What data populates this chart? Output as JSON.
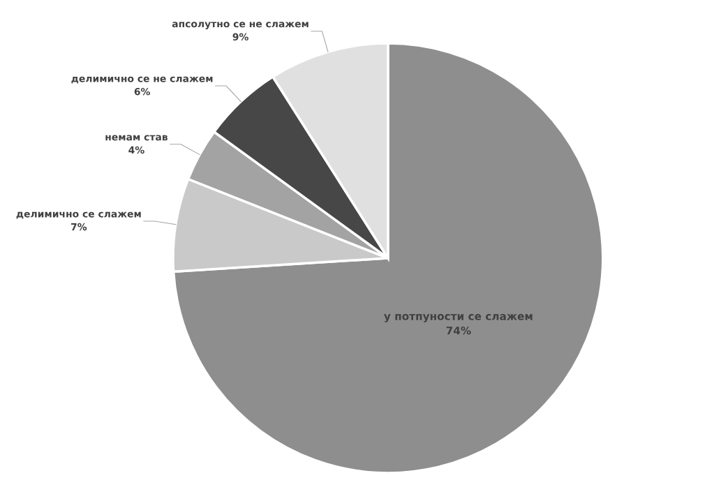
{
  "chart_data": {
    "type": "pie",
    "categories": [
      "у потпуности се слажем",
      "делимично се слажем",
      "немам став",
      "делимично се не слажем",
      "апсолутно се не слажем"
    ],
    "values": [
      74,
      7,
      4,
      6,
      9
    ],
    "value_labels": [
      "74%",
      "7%",
      "4%",
      "6%",
      "9%"
    ],
    "colors": [
      "#8e8e8e",
      "#c9c9c9",
      "#a3a3a3",
      "#474747",
      "#e0e0e0"
    ]
  }
}
